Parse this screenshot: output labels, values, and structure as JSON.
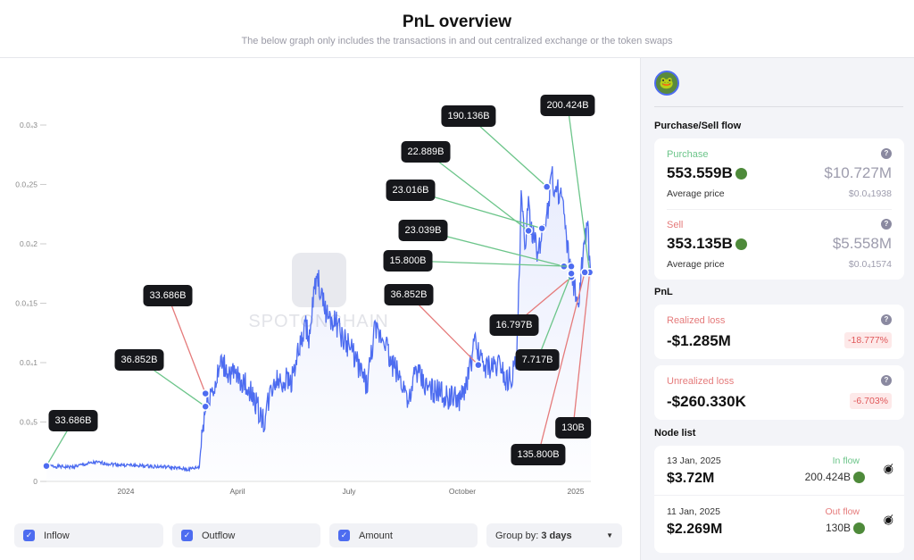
{
  "header": {
    "title": "PnL overview",
    "subtitle": "The below graph only includes the transactions in and out centralized exchange or the token swaps"
  },
  "chart_data": {
    "type": "line",
    "title": "PnL overview",
    "watermark": "SPOTONCHAIN",
    "x_ticks": [
      "2024",
      "April",
      "July",
      "October",
      "2025"
    ],
    "y_ticks": [
      "0",
      "0.0₄5",
      "0.0₄1",
      "0.0₄15",
      "0.0₄2",
      "0.0₄25",
      "0.0₄3"
    ],
    "y_tick_values": [
      0,
      0.05,
      0.1,
      0.15,
      0.2,
      0.25,
      0.3
    ],
    "ylim": [
      0,
      0.3
    ],
    "x_unit": "days since 2023-10-22",
    "xlim": [
      0,
      445
    ],
    "price_points": [
      [
        0,
        0.013
      ],
      [
        20,
        0.012
      ],
      [
        40,
        0.016
      ],
      [
        60,
        0.014
      ],
      [
        80,
        0.013
      ],
      [
        100,
        0.012
      ],
      [
        115,
        0.01
      ],
      [
        120,
        0.011
      ],
      [
        125,
        0.012
      ],
      [
        127,
        0.04
      ],
      [
        130,
        0.062
      ],
      [
        134,
        0.075
      ],
      [
        138,
        0.08
      ],
      [
        143,
        0.1
      ],
      [
        150,
        0.09
      ],
      [
        160,
        0.085
      ],
      [
        170,
        0.07
      ],
      [
        175,
        0.055
      ],
      [
        178,
        0.05
      ],
      [
        182,
        0.07
      ],
      [
        186,
        0.085
      ],
      [
        200,
        0.085
      ],
      [
        205,
        0.105
      ],
      [
        212,
        0.13
      ],
      [
        215,
        0.12
      ],
      [
        219,
        0.16
      ],
      [
        222,
        0.17
      ],
      [
        226,
        0.15
      ],
      [
        230,
        0.14
      ],
      [
        236,
        0.135
      ],
      [
        242,
        0.12
      ],
      [
        250,
        0.11
      ],
      [
        256,
        0.095
      ],
      [
        262,
        0.08
      ],
      [
        268,
        0.125
      ],
      [
        277,
        0.12
      ],
      [
        281,
        0.1
      ],
      [
        285,
        0.095
      ],
      [
        290,
        0.085
      ],
      [
        294,
        0.075
      ],
      [
        298,
        0.065
      ],
      [
        301,
        0.095
      ],
      [
        310,
        0.08
      ],
      [
        320,
        0.075
      ],
      [
        330,
        0.07
      ],
      [
        340,
        0.07
      ],
      [
        345,
        0.09
      ],
      [
        350,
        0.115
      ],
      [
        356,
        0.1
      ],
      [
        362,
        0.095
      ],
      [
        372,
        0.1
      ],
      [
        375,
        0.085
      ],
      [
        380,
        0.09
      ],
      [
        384,
        0.1
      ],
      [
        385,
        0.125
      ],
      [
        387,
        0.19
      ],
      [
        388,
        0.24
      ],
      [
        391,
        0.2
      ],
      [
        394,
        0.23
      ],
      [
        398,
        0.205
      ],
      [
        402,
        0.19
      ],
      [
        406,
        0.215
      ],
      [
        410,
        0.23
      ],
      [
        412,
        0.25
      ],
      [
        413,
        0.27
      ],
      [
        415,
        0.24
      ],
      [
        419,
        0.245
      ],
      [
        422,
        0.235
      ],
      [
        425,
        0.2
      ],
      [
        428,
        0.18
      ],
      [
        432,
        0.16
      ],
      [
        434,
        0.14
      ],
      [
        437,
        0.175
      ],
      [
        440,
        0.2
      ],
      [
        442,
        0.215
      ],
      [
        444,
        0.19
      ],
      [
        445,
        0.18
      ]
    ],
    "nodes": [
      {
        "label": "33.686B",
        "flow": "in",
        "day": 0,
        "value": 0.013
      },
      {
        "label": "36.852B",
        "flow": "in",
        "day": 130,
        "value": 0.063
      },
      {
        "label": "33.686B",
        "flow": "out",
        "day": 130,
        "value": 0.074
      },
      {
        "label": "190.136B",
        "flow": "in",
        "day": 409,
        "value": 0.248
      },
      {
        "label": "200.424B",
        "flow": "in",
        "day": 444,
        "value": 0.176
      },
      {
        "label": "22.889B",
        "flow": "in",
        "day": 394,
        "value": 0.211
      },
      {
        "label": "23.016B",
        "flow": "in",
        "day": 405,
        "value": 0.213
      },
      {
        "label": "23.039B",
        "flow": "in",
        "day": 423,
        "value": 0.181
      },
      {
        "label": "15.800B",
        "flow": "in",
        "day": 429,
        "value": 0.181
      },
      {
        "label": "36.852B",
        "flow": "out",
        "day": 353,
        "value": 0.098
      },
      {
        "label": "16.797B",
        "flow": "out",
        "day": 429,
        "value": 0.172
      },
      {
        "label": "7.717B",
        "flow": "in",
        "day": 429,
        "value": 0.175
      },
      {
        "label": "130B",
        "flow": "out",
        "day": 444,
        "value": 0.176
      },
      {
        "label": "135.800B",
        "flow": "out",
        "day": 440,
        "value": 0.176
      }
    ]
  },
  "controls": {
    "inflow": "Inflow",
    "outflow": "Outflow",
    "amount": "Amount",
    "group_by_label": "Group by:",
    "group_by_value": "3 days"
  },
  "side": {
    "purchase_sell_title": "Purchase/Sell flow",
    "purchase": {
      "label": "Purchase",
      "amount": "553.559B",
      "usd": "$10.727M",
      "avg_label": "Average price",
      "avg": "$0.0₄1938"
    },
    "sell": {
      "label": "Sell",
      "amount": "353.135B",
      "usd": "$5.558M",
      "avg_label": "Average price",
      "avg": "$0.0₄1574"
    },
    "pnl_title": "PnL",
    "realized": {
      "label": "Realized loss",
      "value": "-$1.285M",
      "pct": "-18.777%"
    },
    "unrealized": {
      "label": "Unrealized loss",
      "value": "-$260.330K",
      "pct": "-6.703%"
    },
    "node_list_title": "Node list",
    "nodes": [
      {
        "date": "13 Jan, 2025",
        "usd": "$3.72M",
        "flow": "In flow",
        "amount": "200.424B"
      },
      {
        "date": "11 Jan, 2025",
        "usd": "$2.269M",
        "flow": "Out flow",
        "amount": "130B"
      }
    ]
  },
  "colors": {
    "line": "#4d6cf0",
    "inflow": "#6cc58a",
    "outflow": "#e57b7b"
  }
}
